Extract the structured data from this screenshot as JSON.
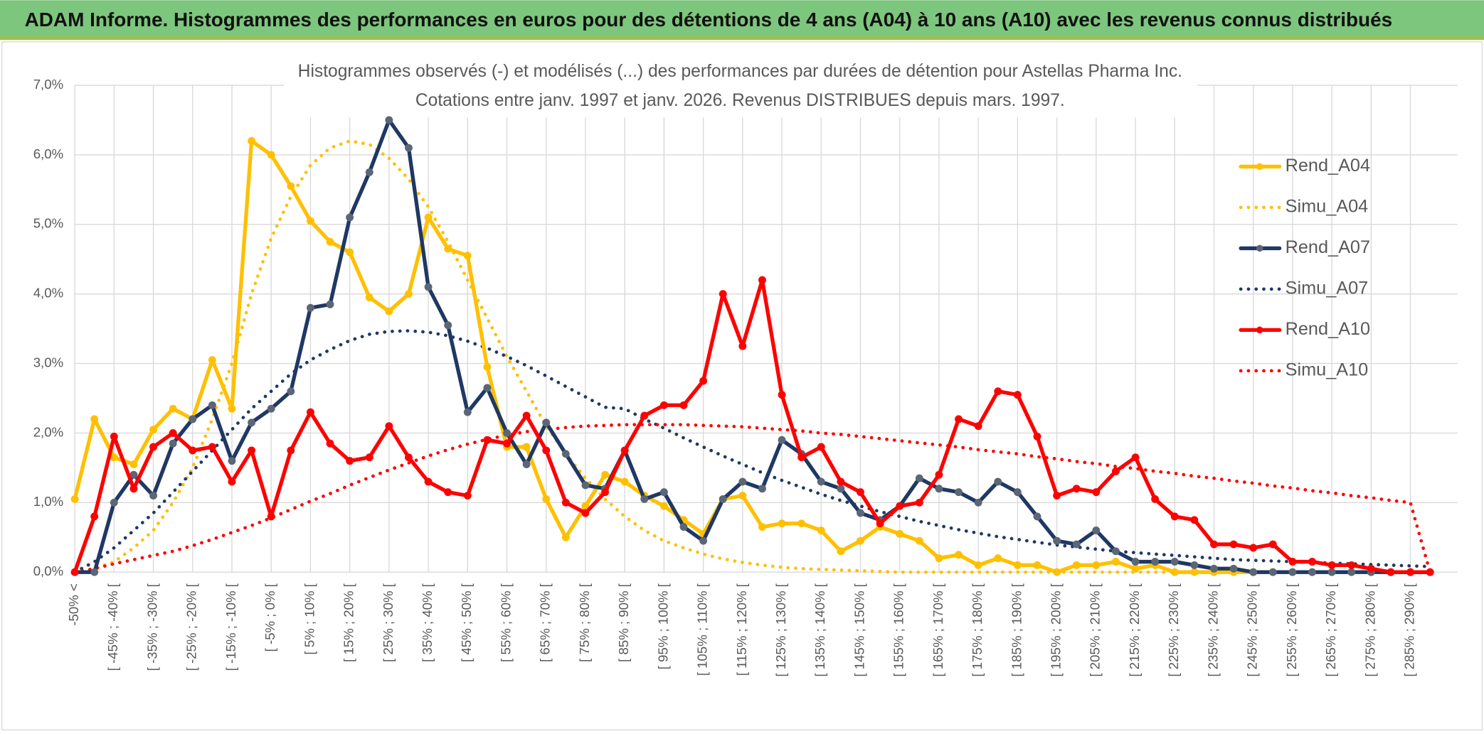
{
  "header": {
    "title": "ADAM Informe. Histogrammes des performances en euros pour des détentions de 4 ans (A04) à 10 ans (A10) avec les revenus connus distribués"
  },
  "chart_data": {
    "type": "line",
    "title": "Histogrammes observés (-) et modélisés (...) des performances par durées de détention pour Astellas Pharma Inc.",
    "subtitle": "Cotations entre janv. 1997 et janv. 2026. Revenus DISTRIBUES depuis mars. 1997.",
    "categories": [
      "-50% <",
      null,
      "[ -45% ; -40% [",
      null,
      "[ -35% ; -30% [",
      null,
      "[ -25% ; -20% [",
      null,
      "[ -15% ; -10% [",
      null,
      "[ -5% ; 0% [",
      null,
      "[ 5% ; 10% [",
      null,
      "[ 15% ; 20% [",
      null,
      "[ 25% ; 30% [",
      null,
      "[ 35% ; 40% [",
      null,
      "[ 45% ; 50% [",
      null,
      "[ 55% ; 60% [",
      null,
      "[ 65% ; 70% [",
      null,
      "[ 75% ; 80% [",
      null,
      "[ 85% ; 90% [",
      null,
      "[ 95% ; 100% [",
      null,
      "[ 105% ; 110% [",
      null,
      "[ 115% ; 120% [",
      null,
      "[ 125% ; 130% [",
      null,
      "[ 135% ; 140% [",
      null,
      "[ 145% ; 150% [",
      null,
      "[ 155% ; 160% [",
      null,
      "[ 165% ; 170% [",
      null,
      "[ 175% ; 180% [",
      null,
      "[ 185% ; 190% [",
      null,
      "[ 195% ; 200% [",
      null,
      "[ 205% ; 210% [",
      null,
      "[ 215% ; 220% [",
      null,
      "[ 225% ; 230% [",
      null,
      "[ 235% ; 240% [",
      null,
      "[ 245% ; 250% [",
      null,
      "[ 255% ; 260% [",
      null,
      "[ 265% ; 270% [",
      null,
      "[ 275% ; 280% [",
      null,
      "[ 285% ; 290% [",
      null
    ],
    "ylim": [
      0,
      7
    ],
    "yticks": [
      {
        "value": 0,
        "label": "0,0%"
      },
      {
        "value": 1,
        "label": "1,0%"
      },
      {
        "value": 2,
        "label": "2,0%"
      },
      {
        "value": 3,
        "label": "3,0%"
      },
      {
        "value": 4,
        "label": "4,0%"
      },
      {
        "value": 5,
        "label": "5,0%"
      },
      {
        "value": 6,
        "label": "6,0%"
      },
      {
        "value": 7,
        "label": "7,0%"
      }
    ],
    "grid": true,
    "legend": "right",
    "series": [
      {
        "name": "Rend_A04",
        "color": "#FFC000",
        "style": "solid",
        "markers": true,
        "marker_color": "#FFC000",
        "values": [
          1.05,
          2.2,
          1.65,
          1.55,
          2.05,
          2.35,
          2.2,
          3.05,
          2.35,
          6.2,
          6.0,
          5.55,
          5.05,
          4.75,
          4.6,
          3.95,
          3.75,
          4.0,
          5.1,
          4.65,
          4.55,
          2.95,
          1.8,
          1.8,
          1.05,
          0.5,
          0.95,
          1.4,
          1.3,
          1.1,
          0.95,
          0.75,
          0.55,
          1.05,
          1.1,
          0.65,
          0.7,
          0.7,
          0.6,
          0.3,
          0.45,
          0.65,
          0.55,
          0.45,
          0.2,
          0.25,
          0.1,
          0.2,
          0.1,
          0.1,
          0.0,
          0.1,
          0.1,
          0.15,
          0.05,
          0.1,
          0.0,
          0.0,
          0.0,
          0.0,
          0.0,
          0.0,
          0.0,
          0.0,
          0.0,
          0.0,
          0.0,
          0.0,
          0.0,
          0.0
        ]
      },
      {
        "name": "Simu_A04",
        "color": "#FFC000",
        "style": "dotted",
        "markers": false,
        "values": [
          0.0,
          0.05,
          0.15,
          0.35,
          0.6,
          1.0,
          1.5,
          2.2,
          3.0,
          4.0,
          4.8,
          5.4,
          5.85,
          6.1,
          6.2,
          6.15,
          5.95,
          5.65,
          5.25,
          4.75,
          4.2,
          3.65,
          3.1,
          2.6,
          2.1,
          1.7,
          1.35,
          1.05,
          0.8,
          0.6,
          0.45,
          0.35,
          0.26,
          0.19,
          0.14,
          0.1,
          0.07,
          0.05,
          0.04,
          0.03,
          0.02,
          0.01,
          0.0,
          0.0,
          0.0,
          0.0,
          0.0,
          0.0,
          0.0,
          0.0,
          0.0,
          0.0,
          0.0,
          0.0,
          0.0,
          0.0,
          0.0,
          0.0,
          0.0,
          0.0,
          0.0,
          0.0,
          0.0,
          0.0,
          0.0,
          0.0,
          0.0,
          0.0,
          0.0,
          0.0
        ]
      },
      {
        "name": "Rend_A07",
        "color": "#1F3864",
        "style": "solid",
        "markers": true,
        "marker_color": "#5B6677",
        "values": [
          0.0,
          0.0,
          1.0,
          1.4,
          1.1,
          1.85,
          2.2,
          2.4,
          1.6,
          2.15,
          2.35,
          2.6,
          3.8,
          3.85,
          5.1,
          5.75,
          6.5,
          6.1,
          4.1,
          3.55,
          2.3,
          2.65,
          2.0,
          1.55,
          2.15,
          1.7,
          1.25,
          1.2,
          1.75,
          1.05,
          1.15,
          0.65,
          0.45,
          1.05,
          1.3,
          1.2,
          1.9,
          1.7,
          1.3,
          1.2,
          0.85,
          0.75,
          0.95,
          1.35,
          1.2,
          1.15,
          1.0,
          1.3,
          1.15,
          0.8,
          0.45,
          0.4,
          0.6,
          0.3,
          0.15,
          0.15,
          0.15,
          0.1,
          0.05,
          0.05,
          0.0,
          0.0,
          0.0,
          0.0,
          0.0,
          0.0,
          0.0,
          0.0,
          0.0,
          0.0
        ]
      },
      {
        "name": "Simu_A07",
        "color": "#1F3864",
        "style": "dotted",
        "markers": false,
        "values": [
          0.0,
          0.15,
          0.35,
          0.6,
          0.85,
          1.15,
          1.45,
          1.75,
          2.05,
          2.35,
          2.6,
          2.85,
          3.05,
          3.2,
          3.33,
          3.42,
          3.46,
          3.47,
          3.45,
          3.4,
          3.32,
          3.22,
          3.1,
          2.97,
          2.82,
          2.67,
          2.52,
          2.37,
          2.35,
          2.2,
          2.07,
          1.93,
          1.8,
          1.67,
          1.55,
          1.43,
          1.32,
          1.22,
          1.12,
          1.03,
          0.95,
          0.87,
          0.8,
          0.73,
          0.67,
          0.61,
          0.56,
          0.51,
          0.47,
          0.43,
          0.39,
          0.36,
          0.33,
          0.3,
          0.28,
          0.26,
          0.24,
          0.22,
          0.2,
          0.18,
          0.17,
          0.16,
          0.15,
          0.14,
          0.13,
          0.12,
          0.11,
          0.1,
          0.09,
          0.08
        ]
      },
      {
        "name": "Rend_A10",
        "color": "#FF0000",
        "style": "solid",
        "markers": true,
        "marker_color": "#FF0000",
        "values": [
          0.0,
          0.8,
          1.95,
          1.2,
          1.8,
          2.0,
          1.75,
          1.8,
          1.3,
          1.75,
          0.8,
          1.75,
          2.3,
          1.85,
          1.6,
          1.65,
          2.1,
          1.65,
          1.3,
          1.15,
          1.1,
          1.9,
          1.85,
          2.25,
          1.75,
          1.0,
          0.85,
          1.15,
          1.75,
          2.25,
          2.4,
          2.4,
          2.75,
          4.0,
          3.25,
          4.2,
          2.55,
          1.65,
          1.8,
          1.3,
          1.15,
          0.7,
          0.95,
          1.0,
          1.4,
          2.2,
          2.1,
          2.6,
          2.55,
          1.95,
          1.1,
          1.2,
          1.15,
          1.45,
          1.65,
          1.05,
          0.8,
          0.75,
          0.4,
          0.4,
          0.35,
          0.4,
          0.15,
          0.15,
          0.1,
          0.1,
          0.05,
          0.0,
          0.0,
          0.0
        ]
      },
      {
        "name": "Simu_A10",
        "color": "#FF0000",
        "style": "dotted",
        "markers": false,
        "values": [
          0.0,
          0.05,
          0.12,
          0.18,
          0.24,
          0.3,
          0.38,
          0.47,
          0.57,
          0.67,
          0.78,
          0.9,
          1.02,
          1.13,
          1.25,
          1.36,
          1.47,
          1.57,
          1.67,
          1.76,
          1.84,
          1.91,
          1.97,
          2.02,
          2.05,
          2.08,
          2.1,
          2.11,
          2.12,
          2.12,
          2.12,
          2.12,
          2.11,
          2.1,
          2.09,
          2.07,
          2.05,
          2.03,
          2.0,
          1.98,
          1.95,
          1.92,
          1.89,
          1.86,
          1.83,
          1.8,
          1.76,
          1.73,
          1.7,
          1.66,
          1.63,
          1.59,
          1.56,
          1.52,
          1.49,
          1.45,
          1.42,
          1.38,
          1.35,
          1.31,
          1.28,
          1.24,
          1.21,
          1.17,
          1.14,
          1.1,
          1.07,
          1.03,
          1.0,
          0.0
        ]
      }
    ]
  }
}
